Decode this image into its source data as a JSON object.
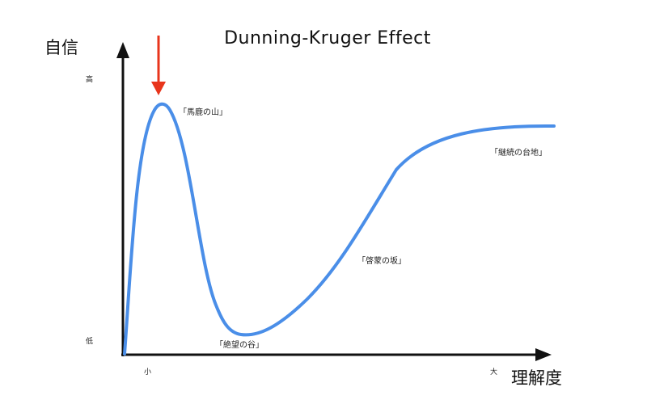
{
  "title": "Dunning-Kruger  Effect",
  "y_axis": {
    "label": "自信",
    "high": "高",
    "low": "低"
  },
  "x_axis": {
    "label": "理解度",
    "small": "小",
    "large": "大"
  },
  "annotations": {
    "peak": "「馬鹿の山」",
    "valley": "「絶望の谷」",
    "slope": "「啓蒙の坂」",
    "plateau": "「継続の台地」"
  },
  "colors": {
    "curve": "#4a8ee8",
    "pointer_arrow": "#e8351c",
    "axes": "#111111"
  },
  "pointer_icon": "down-arrow-icon"
}
